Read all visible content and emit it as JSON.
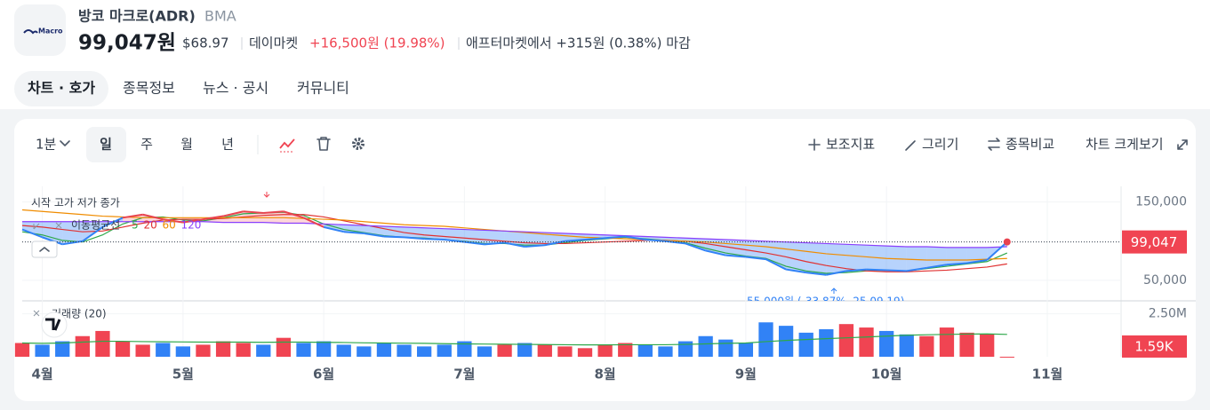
{
  "header": {
    "logo": "Macro",
    "name": "방코 마크로(ADR)",
    "ticker": "BMA",
    "price": "99,047원",
    "usd_price": "$68.97",
    "session": "데이마켓",
    "change": "+16,500원 (19.98%)",
    "after_market": "애프터마켓에서 +315원 (0.38%) 마감"
  },
  "tabs": [
    "차트 · 호가",
    "종목정보",
    "뉴스 · 공시",
    "커뮤니티"
  ],
  "toolbar": {
    "interval": "1분",
    "periods": [
      "일",
      "주",
      "월",
      "년"
    ],
    "actions": [
      "보조지표",
      "그리기",
      "종목비교",
      "차트 크게보기"
    ]
  },
  "chart_data": {
    "type": "line",
    "ohlc_label": "시작 고가 저가 종가",
    "legend_title": "이동평균선",
    "categories": [
      null,
      "4월",
      null,
      null,
      null,
      null,
      null,
      null,
      "5월",
      null,
      null,
      null,
      null,
      null,
      null,
      "6월",
      null,
      null,
      null,
      null,
      null,
      null,
      "7월",
      null,
      null,
      null,
      null,
      null,
      null,
      "8월",
      null,
      null,
      null,
      null,
      null,
      null,
      "9월",
      null,
      null,
      null,
      null,
      null,
      null,
      "10월",
      null,
      null,
      null,
      null,
      null,
      null,
      null,
      "11월"
    ],
    "values": [
      115000,
      105000,
      96000,
      100000,
      118000,
      130000,
      134000,
      128000,
      124000,
      128000,
      132000,
      138000,
      136000,
      138000,
      130000,
      118000,
      112000,
      110000,
      106000,
      105000,
      103000,
      102000,
      99000,
      96000,
      98000,
      93000,
      95000,
      100000,
      102000,
      104000,
      106000,
      102000,
      100000,
      97000,
      88000,
      82000,
      80000,
      77000,
      64000,
      60000,
      57000,
      62000,
      64000,
      63000,
      62000,
      66000,
      70000,
      72000,
      76000,
      99047,
      null,
      null
    ],
    "up_color": "#e8434f",
    "down_color": "#3182f6",
    "series": [
      {
        "name": "5",
        "color": "#2ea84a",
        "values": [
          112000,
          108000,
          101000,
          99000,
          108000,
          122000,
          130000,
          131000,
          127000,
          126000,
          130000,
          135000,
          136000,
          137000,
          133000,
          122000,
          115000,
          111000,
          107000,
          105000,
          104000,
          102000,
          100000,
          97000,
          97000,
          95000,
          95000,
          98000,
          101000,
          103000,
          105000,
          103000,
          101000,
          98000,
          91000,
          85000,
          81000,
          78000,
          68000,
          62000,
          59000,
          60000,
          62000,
          63000,
          62000,
          65000,
          68000,
          71000,
          74000,
          85000,
          null,
          null
        ]
      },
      {
        "name": "20",
        "color": "#e03131",
        "values": [
          120000,
          118000,
          115000,
          112000,
          113000,
          118000,
          123000,
          127000,
          128000,
          128000,
          129000,
          131000,
          133000,
          134000,
          134000,
          131000,
          126000,
          121000,
          116000,
          111000,
          108000,
          106000,
          104000,
          102000,
          100000,
          98000,
          97000,
          97000,
          98000,
          99000,
          100000,
          101000,
          101000,
          100000,
          97000,
          93000,
          89000,
          85000,
          80000,
          74000,
          69000,
          65000,
          62000,
          61000,
          61000,
          62000,
          63000,
          65000,
          67000,
          71000,
          null,
          null
        ]
      },
      {
        "name": "60",
        "color": "#f08c00",
        "values": [
          140000,
          138000,
          136000,
          134000,
          132000,
          131000,
          130000,
          130000,
          130000,
          130000,
          130000,
          130000,
          130000,
          130000,
          129000,
          128000,
          127000,
          125000,
          123000,
          121000,
          120000,
          119000,
          117000,
          115000,
          113000,
          111000,
          109000,
          107000,
          105000,
          104000,
          103000,
          102000,
          101000,
          100000,
          99000,
          97000,
          95000,
          93000,
          90000,
          87000,
          84000,
          82000,
          80000,
          78000,
          77000,
          76000,
          76000,
          76000,
          77000,
          78000,
          null,
          null
        ]
      },
      {
        "name": "120",
        "color": "#8a3ffc",
        "values": [
          125000,
          125000,
          125000,
          125000,
          125000,
          125000,
          125000,
          125000,
          125000,
          125000,
          124000,
          124000,
          124000,
          123000,
          123000,
          122000,
          121000,
          120000,
          119000,
          118000,
          117000,
          116000,
          115000,
          114000,
          113000,
          112000,
          111000,
          110000,
          109000,
          108000,
          107000,
          106000,
          105000,
          104000,
          103000,
          102000,
          101000,
          100000,
          99000,
          98000,
          97000,
          96000,
          95000,
          94000,
          93000,
          93000,
          92000,
          92000,
          92000,
          93000,
          null,
          null
        ]
      }
    ],
    "ylim": [
      25000,
      170000
    ],
    "yticks": [
      {
        "value": 150000,
        "label": "150,000"
      },
      {
        "value": 50000,
        "label": "50,000"
      }
    ],
    "current_price": {
      "value": 99047,
      "label": "99,047"
    },
    "low_annotation": "55,000원 (-33.87%, 25.09.19)",
    "grid": true,
    "fill": true,
    "volume": {
      "label": "거래량 (20)",
      "values": [
        800000,
        700000,
        900000,
        1200000,
        1500000,
        900000,
        700000,
        800000,
        600000,
        700000,
        900000,
        800000,
        700000,
        1100000,
        800000,
        900000,
        700000,
        600000,
        800000,
        700000,
        600000,
        700000,
        900000,
        600000,
        700000,
        800000,
        700000,
        600000,
        500000,
        700000,
        800000,
        700000,
        600000,
        900000,
        1200000,
        1000000,
        800000,
        2000000,
        1800000,
        1400000,
        1600000,
        1900000,
        1700000,
        1500000,
        1300000,
        1200000,
        1700000,
        1400000,
        1300000,
        1590,
        null,
        null
      ],
      "ma_values": [
        800000,
        780000,
        800000,
        850000,
        900000,
        900000,
        880000,
        870000,
        860000,
        850000,
        850000,
        850000,
        840000,
        850000,
        850000,
        840000,
        830000,
        810000,
        800000,
        790000,
        780000,
        760000,
        750000,
        740000,
        730000,
        720000,
        710000,
        700000,
        690000,
        690000,
        700000,
        700000,
        700000,
        720000,
        750000,
        780000,
        800000,
        880000,
        950000,
        1000000,
        1050000,
        1100000,
        1150000,
        1200000,
        1250000,
        1280000,
        1300000,
        1320000,
        1330000,
        1300000,
        null,
        null
      ],
      "ma_color": "#2ea84a",
      "ylim": [
        0,
        3200000
      ],
      "yticks": [
        {
          "value": 2500000,
          "label": "2.50M"
        }
      ],
      "current": {
        "value": 1590,
        "label": "1.59K"
      }
    }
  }
}
